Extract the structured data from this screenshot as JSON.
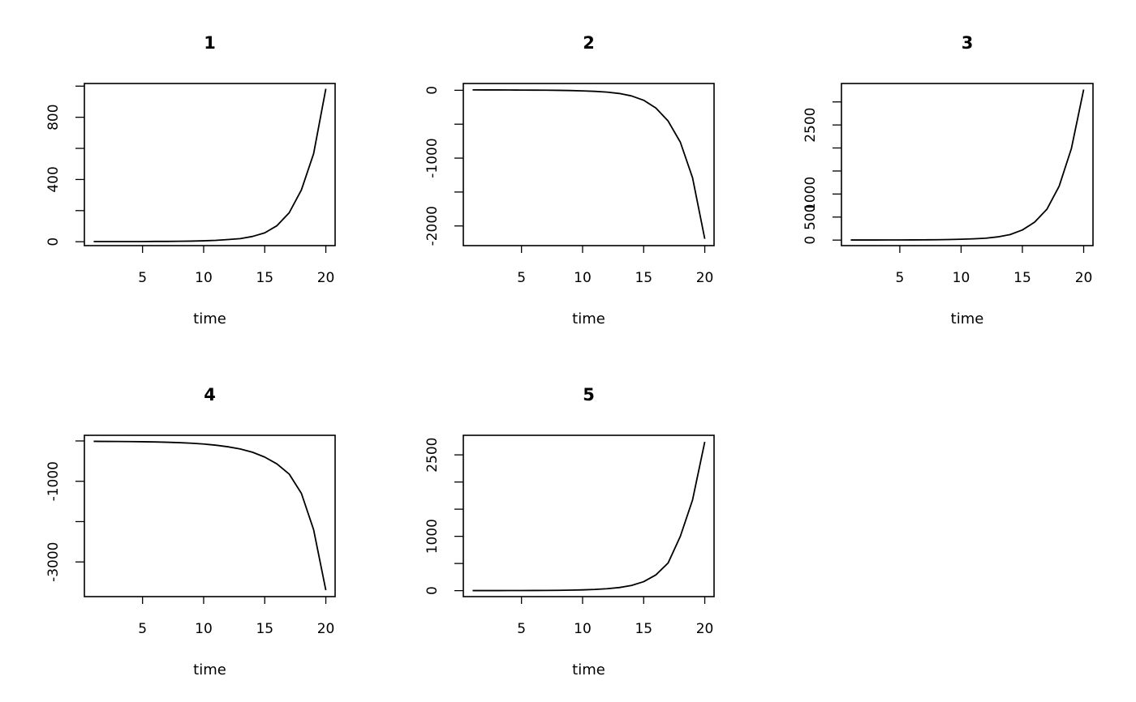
{
  "chart_data": [
    {
      "type": "line",
      "title": "1",
      "xlabel": "time",
      "ylabel": "",
      "xlim": [
        0.24,
        20.76
      ],
      "ylim": [
        -25,
        1017
      ],
      "xticks": [
        5,
        10,
        15,
        20
      ],
      "yticks": [
        0,
        200,
        400,
        600,
        800,
        1000
      ],
      "yticklabels": [
        "0",
        "",
        "400",
        "",
        "800",
        ""
      ],
      "series": [
        {
          "x": [
            1,
            2,
            3,
            4,
            5,
            6,
            7,
            8,
            9,
            10,
            11,
            12,
            13,
            14,
            15,
            16,
            17,
            18,
            19,
            20
          ],
          "y": [
            1,
            1,
            1,
            1,
            1,
            2,
            2,
            3,
            4,
            6,
            9,
            14,
            20,
            34,
            57,
            103,
            186,
            333,
            566,
            983
          ]
        }
      ]
    },
    {
      "type": "line",
      "title": "2",
      "xlabel": "time",
      "ylabel": "",
      "xlim": [
        0.24,
        20.76
      ],
      "ylim": [
        -2290,
        100
      ],
      "xticks": [
        5,
        10,
        15,
        20
      ],
      "yticks": [
        0,
        -500,
        -1000,
        -1500,
        -2000
      ],
      "yticklabels": [
        "0",
        "",
        "-1000",
        "",
        "-2000"
      ],
      "series": [
        {
          "x": [
            1,
            2,
            3,
            4,
            5,
            6,
            7,
            8,
            9,
            10,
            11,
            12,
            13,
            14,
            15,
            16,
            17,
            18,
            19,
            20
          ],
          "y": [
            6,
            5,
            5,
            4,
            3,
            2,
            1,
            -1,
            -4,
            -9,
            -16,
            -27,
            -47,
            -83,
            -147,
            -262,
            -453,
            -765,
            -1290,
            -2190
          ]
        }
      ]
    },
    {
      "type": "line",
      "title": "3",
      "xlabel": "time",
      "ylabel": "",
      "xlim": [
        0.24,
        20.76
      ],
      "ylim": [
        -120,
        3400
      ],
      "xticks": [
        5,
        10,
        15,
        20
      ],
      "yticks": [
        0,
        500,
        1000,
        1500,
        2000,
        2500,
        3000
      ],
      "yticklabels": [
        "0",
        "500",
        "1000",
        "",
        "",
        "2500",
        ""
      ],
      "series": [
        {
          "x": [
            1,
            2,
            3,
            4,
            5,
            6,
            7,
            8,
            9,
            10,
            11,
            12,
            13,
            14,
            15,
            16,
            17,
            18,
            19,
            20
          ],
          "y": [
            2,
            2,
            2,
            3,
            3,
            4,
            6,
            8,
            12,
            18,
            27,
            40,
            70,
            120,
            220,
            390,
            670,
            1170,
            1990,
            3270
          ]
        }
      ]
    },
    {
      "type": "line",
      "title": "4",
      "xlabel": "time",
      "ylabel": "",
      "xlim": [
        0.24,
        20.76
      ],
      "ylim": [
        -3860,
        140
      ],
      "xticks": [
        5,
        10,
        15,
        20
      ],
      "yticks": [
        0,
        -1000,
        -2000,
        -3000
      ],
      "yticklabels": [
        "",
        "-1000",
        "",
        "-3000"
      ],
      "series": [
        {
          "x": [
            1,
            2,
            3,
            4,
            5,
            6,
            7,
            8,
            9,
            10,
            11,
            12,
            13,
            14,
            15,
            16,
            17,
            18,
            19,
            20
          ],
          "y": [
            -10,
            -12,
            -14,
            -16,
            -20,
            -25,
            -32,
            -42,
            -56,
            -76,
            -105,
            -145,
            -200,
            -280,
            -400,
            -570,
            -820,
            -1300,
            -2200,
            -3700
          ]
        }
      ]
    },
    {
      "type": "line",
      "title": "5",
      "xlabel": "time",
      "ylabel": "",
      "xlim": [
        0.24,
        20.76
      ],
      "ylim": [
        -110,
        2860
      ],
      "xticks": [
        5,
        10,
        15,
        20
      ],
      "yticks": [
        0,
        500,
        1000,
        1500,
        2000,
        2500
      ],
      "yticklabels": [
        "0",
        "",
        "1000",
        "",
        "",
        "2500"
      ],
      "series": [
        {
          "x": [
            1,
            2,
            3,
            4,
            5,
            6,
            7,
            8,
            9,
            10,
            11,
            12,
            13,
            14,
            15,
            16,
            17,
            18,
            19,
            20
          ],
          "y": [
            1,
            1,
            1,
            2,
            2,
            3,
            4,
            6,
            9,
            14,
            22,
            35,
            57,
            95,
            165,
            290,
            510,
            1000,
            1670,
            2740
          ]
        }
      ]
    }
  ]
}
